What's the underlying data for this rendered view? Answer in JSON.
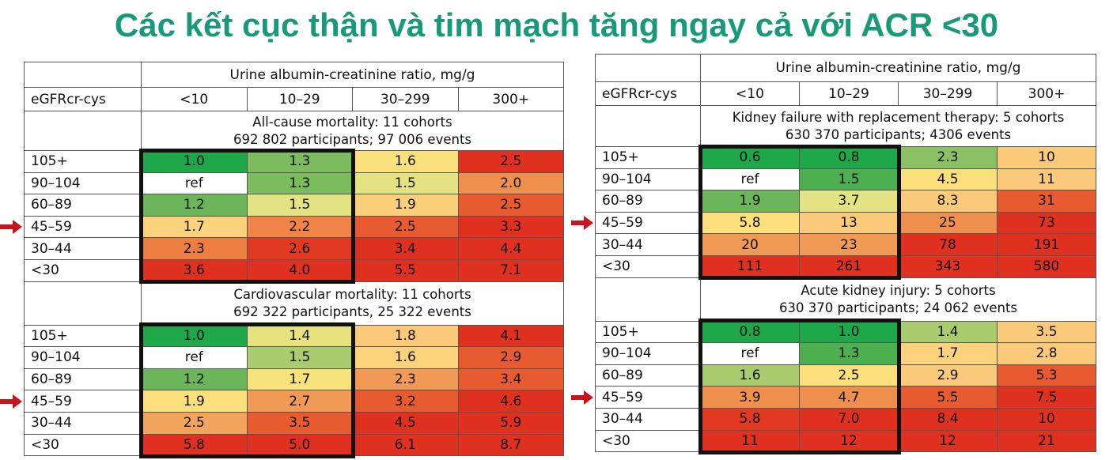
{
  "title": "Các kết cục thận và tim mạch tăng ngay cả với ACR <30",
  "tables": [
    {
      "header_group": "Urine albumin-creatinine ratio, mg/g",
      "row_header": "eGFRcr-cys",
      "columns": [
        "<10",
        "10–29",
        "30–299",
        "300+"
      ],
      "sections": [
        {
          "title": "All-cause mortality: 11 cohorts",
          "subtitle": "692 802 participants; 97 006 events",
          "rows": [
            {
              "label": "105+",
              "cells": [
                "1.0",
                "1.3",
                "1.6",
                "2.5"
              ],
              "colors": [
                "#1fa84a",
                "#7dbb5f",
                "#fbe07c",
                "#e0301f"
              ]
            },
            {
              "label": "90–104",
              "cells": [
                "ref",
                "1.3",
                "1.5",
                "2.0"
              ],
              "colors": [
                "#ffffff",
                "#7dbb5f",
                "#e4e384",
                "#ef8f4e"
              ]
            },
            {
              "label": "60–89",
              "cells": [
                "1.2",
                "1.5",
                "1.9",
                "2.5"
              ],
              "colors": [
                "#6db55a",
                "#e4e384",
                "#fbd07b",
                "#e85a30"
              ]
            },
            {
              "label": "45–59",
              "cells": [
                "1.7",
                "2.2",
                "2.5",
                "3.3"
              ],
              "colors": [
                "#fcd27c",
                "#ef8446",
                "#e85a30",
                "#e0301f"
              ]
            },
            {
              "label": "30–44",
              "cells": [
                "2.3",
                "2.6",
                "3.4",
                "4.4"
              ],
              "colors": [
                "#ee7d42",
                "#e23a22",
                "#e0301f",
                "#e0301f"
              ]
            },
            {
              "label": "<30",
              "cells": [
                "3.6",
                "4.0",
                "5.5",
                "7.1"
              ],
              "colors": [
                "#e0301f",
                "#e0301f",
                "#e0301f",
                "#e0301f"
              ]
            }
          ]
        },
        {
          "title": "Cardiovascular mortality: 11 cohorts",
          "subtitle": "692 322 participants, 25 322 events",
          "rows": [
            {
              "label": "105+",
              "cells": [
                "1.0",
                "1.4",
                "1.8",
                "4.1"
              ],
              "colors": [
                "#1fa84a",
                "#e8e27e",
                "#fbc97a",
                "#e0301f"
              ]
            },
            {
              "label": "90–104",
              "cells": [
                "ref",
                "1.5",
                "1.6",
                "2.9"
              ],
              "colors": [
                "#ffffff",
                "#a9cc6f",
                "#fcd27c",
                "#e85a30"
              ]
            },
            {
              "label": "60–89",
              "cells": [
                "1.2",
                "1.7",
                "2.3",
                "3.4"
              ],
              "colors": [
                "#6db55a",
                "#f7e27c",
                "#f09a55",
                "#e85a30"
              ]
            },
            {
              "label": "45–59",
              "cells": [
                "1.9",
                "2.7",
                "3.2",
                "4.6"
              ],
              "colors": [
                "#fce07c",
                "#f09a55",
                "#e85a30",
                "#e0301f"
              ]
            },
            {
              "label": "30–44",
              "cells": [
                "2.5",
                "3.5",
                "4.5",
                "5.9"
              ],
              "colors": [
                "#f3a45c",
                "#e85a30",
                "#e0301f",
                "#e0301f"
              ]
            },
            {
              "label": "<30",
              "cells": [
                "5.8",
                "5.0",
                "6.1",
                "8.7"
              ],
              "colors": [
                "#e0301f",
                "#e0301f",
                "#e0301f",
                "#e0301f"
              ]
            }
          ]
        }
      ]
    },
    {
      "header_group": "Urine albumin-creatinine ratio, mg/g",
      "row_header": "eGFRcr-cys",
      "columns": [
        "<10",
        "10–29",
        "30–299",
        "300+"
      ],
      "sections": [
        {
          "title": "Kidney failure with replacement therapy: 5 cohorts",
          "subtitle": "630 370 participants; 4306 events",
          "rows": [
            {
              "label": "105+",
              "cells": [
                "0.6",
                "0.8",
                "2.3",
                "10"
              ],
              "colors": [
                "#1fa84a",
                "#1fa84a",
                "#8cc163",
                "#fbc97a"
              ]
            },
            {
              "label": "90–104",
              "cells": [
                "ref",
                "1.5",
                "4.5",
                "11"
              ],
              "colors": [
                "#ffffff",
                "#4caf50",
                "#fbe07c",
                "#fbc97a"
              ]
            },
            {
              "label": "60–89",
              "cells": [
                "1.9",
                "3.7",
                "8.3",
                "31"
              ],
              "colors": [
                "#6db55a",
                "#e4e384",
                "#fbc97a",
                "#e85a30"
              ]
            },
            {
              "label": "45–59",
              "cells": [
                "5.8",
                "13",
                "25",
                "73"
              ],
              "colors": [
                "#fce07c",
                "#fbc97a",
                "#ef8f4e",
                "#e0301f"
              ]
            },
            {
              "label": "30–44",
              "cells": [
                "20",
                "23",
                "78",
                "191"
              ],
              "colors": [
                "#f09a55",
                "#f09a55",
                "#e0301f",
                "#e0301f"
              ]
            },
            {
              "label": "<30",
              "cells": [
                "111",
                "261",
                "343",
                "580"
              ],
              "colors": [
                "#e0301f",
                "#e0301f",
                "#e0301f",
                "#e0301f"
              ]
            }
          ]
        },
        {
          "title": "Acute kidney injury: 5 cohorts",
          "subtitle": "630 370 participants; 24 062 events",
          "rows": [
            {
              "label": "105+",
              "cells": [
                "0.8",
                "1.0",
                "1.4",
                "3.5"
              ],
              "colors": [
                "#1fa84a",
                "#1fa84a",
                "#a9cc6f",
                "#fbc97a"
              ]
            },
            {
              "label": "90–104",
              "cells": [
                "ref",
                "1.3",
                "1.7",
                "2.8"
              ],
              "colors": [
                "#ffffff",
                "#4caf50",
                "#fcd27c",
                "#fbc97a"
              ]
            },
            {
              "label": "60–89",
              "cells": [
                "1.6",
                "2.5",
                "2.9",
                "5.3"
              ],
              "colors": [
                "#a9cc6f",
                "#fbe07c",
                "#fbc97a",
                "#e85a30"
              ]
            },
            {
              "label": "45–59",
              "cells": [
                "3.9",
                "4.7",
                "5.5",
                "7.5"
              ],
              "colors": [
                "#ef8f4e",
                "#ef8f4e",
                "#e85a30",
                "#e0301f"
              ]
            },
            {
              "label": "30–44",
              "cells": [
                "5.8",
                "7.0",
                "8.4",
                "10"
              ],
              "colors": [
                "#e23a22",
                "#e0301f",
                "#e0301f",
                "#e0301f"
              ]
            },
            {
              "label": "<30",
              "cells": [
                "11",
                "12",
                "12",
                "21"
              ],
              "colors": [
                "#e0301f",
                "#e0301f",
                "#e0301f",
                "#e0301f"
              ]
            }
          ]
        }
      ]
    }
  ]
}
